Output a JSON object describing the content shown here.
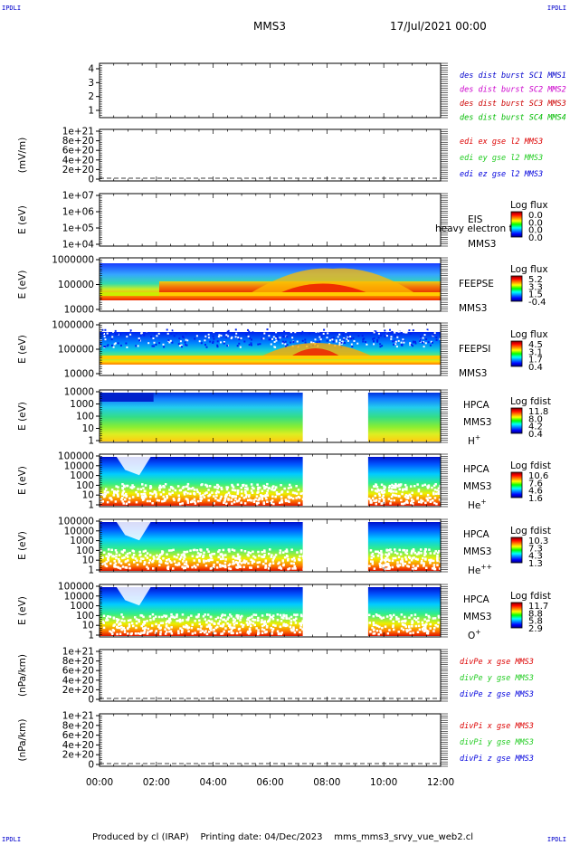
{
  "corner_labels": [
    "IPDLI",
    "IPDLI",
    "IPDLI",
    "IPDLI"
  ],
  "header": {
    "spacecraft": "MMS3",
    "date": "17/Jul/2021 00:00"
  },
  "footer": {
    "produced_by": "Produced by cl (IRAP)",
    "printing_date": "Printing date: 04/Dec/2023",
    "filename": "mms_mms3_srvy_vue_web2.cl"
  },
  "colors": {
    "blue": "#0000cc",
    "magenta": "#cc00cc",
    "red": "#cc0000",
    "green": "#00bb00",
    "legend_red": "#dd0000",
    "legend_green": "#22cc22",
    "legend_blue": "#0000dd"
  },
  "chart_data": [
    {
      "id": "burst",
      "type": "line",
      "ylabel": "",
      "y_ticks": [
        "4",
        "3",
        "2",
        "1"
      ],
      "legend": [
        {
          "text": "des dist burst SC1 MMS1",
          "color": "#0000cc"
        },
        {
          "text": "des dist burst SC2 MMS2",
          "color": "#cc00cc"
        },
        {
          "text": "des dist burst SC3 MMS3",
          "color": "#cc0000"
        },
        {
          "text": "des dist burst SC4 MMS4",
          "color": "#00bb00"
        }
      ]
    },
    {
      "id": "edi",
      "type": "line",
      "ylabel": "(mV/m)",
      "y_ticks": [
        "1e+21",
        "8e+20",
        "6e+20",
        "4e+20",
        "2e+20",
        "0"
      ],
      "legend": [
        {
          "text": "edi ex gse l2 MMS3",
          "color": "#dd0000"
        },
        {
          "text": "edi ey gse l2 MMS3",
          "color": "#22cc22"
        },
        {
          "text": "edi ez gse l2 MMS3",
          "color": "#0000dd"
        }
      ]
    },
    {
      "id": "eis",
      "type": "heatmap",
      "ylabel": "E (eV)",
      "y_ticks": [
        "1e+07",
        "1e+06",
        "1e+05",
        "1e+04"
      ],
      "right_labels": [
        "EIS",
        "MMS3"
      ],
      "overlay_text": "heavy electron to",
      "colorbar": {
        "title": "Log flux",
        "ticks": [
          "0.0",
          "0.0",
          "0.0",
          "0.0"
        ]
      }
    },
    {
      "id": "feepse",
      "type": "heatmap",
      "ylabel": "E (eV)",
      "y_ticks": [
        "1000000",
        "100000",
        "10000"
      ],
      "right_labels": [
        "FEEPSE",
        "MMS3"
      ],
      "colorbar": {
        "title": "Log flux",
        "ticks": [
          "5.2",
          "3.3",
          "1.5",
          "-0.4"
        ]
      }
    },
    {
      "id": "feepsi",
      "type": "heatmap",
      "ylabel": "E (eV)",
      "y_ticks": [
        "1000000",
        "100000",
        "10000"
      ],
      "right_labels": [
        "FEEPSI",
        "MMS3"
      ],
      "colorbar": {
        "title": "Log flux",
        "ticks": [
          "4.5",
          "3.1",
          "1.7",
          "0.4"
        ]
      }
    },
    {
      "id": "hpca_h",
      "type": "heatmap",
      "ylabel": "E (eV)",
      "y_ticks": [
        "10000",
        "1000",
        "100",
        "10",
        "1"
      ],
      "right_labels": [
        "HPCA",
        "MMS3"
      ],
      "species": {
        "base": "H",
        "sup": "+"
      },
      "colorbar": {
        "title": "Log fdist",
        "ticks": [
          "11.8",
          "8.0",
          "4.2",
          "0.4"
        ]
      },
      "data_gap_hours": [
        7.15,
        9.45
      ]
    },
    {
      "id": "hpca_he",
      "type": "heatmap",
      "ylabel": "E (eV)",
      "y_ticks": [
        "100000",
        "10000",
        "1000",
        "100",
        "10",
        "1"
      ],
      "right_labels": [
        "HPCA",
        "MMS3"
      ],
      "species": {
        "base": "He",
        "sup": "+"
      },
      "colorbar": {
        "title": "Log fdist",
        "ticks": [
          "10.6",
          "7.6",
          "4.6",
          "1.6"
        ]
      },
      "data_gap_hours": [
        7.15,
        9.45
      ]
    },
    {
      "id": "hpca_he2",
      "type": "heatmap",
      "ylabel": "E (eV)",
      "y_ticks": [
        "100000",
        "10000",
        "1000",
        "100",
        "10",
        "1"
      ],
      "right_labels": [
        "HPCA",
        "MMS3"
      ],
      "species": {
        "base": "He",
        "sup": "++"
      },
      "colorbar": {
        "title": "Log fdist",
        "ticks": [
          "10.3",
          "7.3",
          "4.3",
          "1.3"
        ]
      },
      "data_gap_hours": [
        7.15,
        9.45
      ]
    },
    {
      "id": "hpca_o",
      "type": "heatmap",
      "ylabel": "E (eV)",
      "y_ticks": [
        "100000",
        "10000",
        "1000",
        "100",
        "10",
        "1"
      ],
      "right_labels": [
        "HPCA",
        "MMS3"
      ],
      "species": {
        "base": "O",
        "sup": "+"
      },
      "colorbar": {
        "title": "Log fdist",
        "ticks": [
          "11.7",
          "8.8",
          "5.8",
          "2.9"
        ]
      },
      "data_gap_hours": [
        7.15,
        9.45
      ]
    },
    {
      "id": "divpe",
      "type": "line",
      "ylabel": "(nPa/km)",
      "y_ticks": [
        "1e+21",
        "8e+20",
        "6e+20",
        "4e+20",
        "2e+20",
        "0"
      ],
      "legend": [
        {
          "text": "divPe x gse MMS3",
          "color": "#dd0000"
        },
        {
          "text": "divPe y gse MMS3",
          "color": "#22cc22"
        },
        {
          "text": "divPe z gse MMS3",
          "color": "#0000dd"
        }
      ]
    },
    {
      "id": "divpi",
      "type": "line",
      "ylabel": "(nPa/km)",
      "y_ticks": [
        "1e+21",
        "8e+20",
        "6e+20",
        "4e+20",
        "2e+20",
        "0"
      ],
      "legend": [
        {
          "text": "divPi x gse MMS3",
          "color": "#dd0000"
        },
        {
          "text": "divPi y gse MMS3",
          "color": "#22cc22"
        },
        {
          "text": "divPi z gse MMS3",
          "color": "#0000dd"
        }
      ]
    }
  ],
  "x_axis": {
    "range_hours": [
      0,
      12
    ],
    "tick_labels": [
      "00:00",
      "02:00",
      "04:00",
      "06:00",
      "08:00",
      "10:00",
      "12:00"
    ]
  }
}
